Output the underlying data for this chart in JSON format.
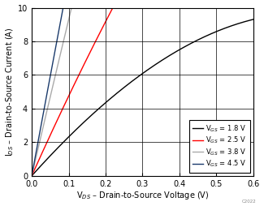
{
  "xlabel": "V$_{DS}$ – Drain-to-Source Voltage (V)",
  "ylabel": "I$_{DS}$ – Drain-to-Source Current (A)",
  "xlim": [
    0,
    0.6
  ],
  "ylim": [
    0,
    10
  ],
  "xticks": [
    0,
    0.1,
    0.2,
    0.3,
    0.4,
    0.5,
    0.6
  ],
  "yticks": [
    0,
    2,
    4,
    6,
    8,
    10
  ],
  "legend_labels": [
    "V$_{GS}$ = 1.8 V",
    "V$_{GS}$ = 2.5 V",
    "V$_{GS}$ = 3.8 V",
    "V$_{GS}$ = 4.5 V"
  ],
  "line_colors": [
    "#000000",
    "#ff0000",
    "#aaaaaa",
    "#1a3a6b"
  ],
  "figsize": [
    3.25,
    2.54
  ],
  "dpi": 100,
  "watermark": "C2022",
  "curves": [
    {
      "vgs": 1.8,
      "vth": 1.1,
      "k": 35.0,
      "lam": 0.18
    },
    {
      "vgs": 2.5,
      "vth": 1.1,
      "k": 35.0,
      "lam": 0.04
    },
    {
      "vgs": 3.8,
      "vth": 1.1,
      "k": 35.0,
      "lam": 0.02
    },
    {
      "vgs": 4.5,
      "vth": 1.1,
      "k": 35.0,
      "lam": 0.01
    }
  ]
}
